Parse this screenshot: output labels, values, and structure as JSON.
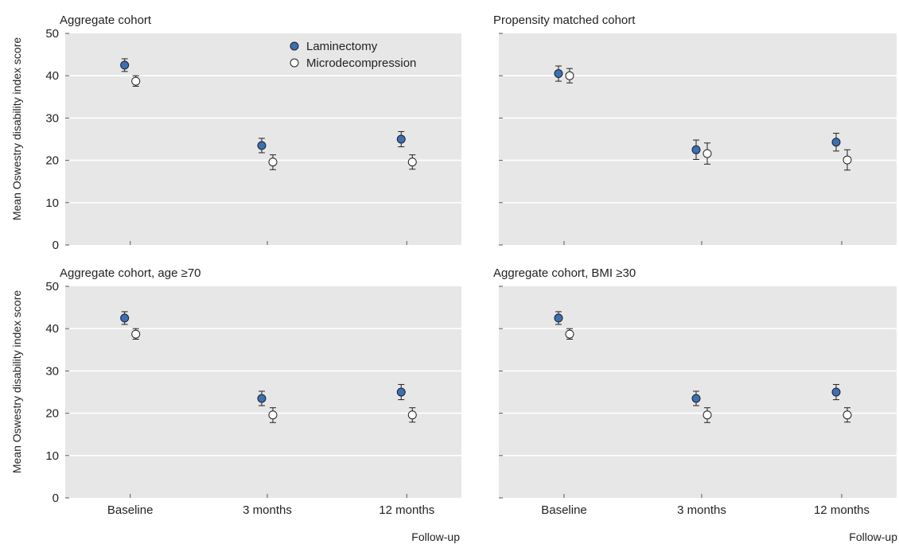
{
  "figure": {
    "ylabel": "Mean Oswestry disability index score",
    "xlabel": "Follow-up"
  },
  "legend": {
    "placement": "top-right of first panel",
    "items": [
      {
        "name": "Laminectomy",
        "marker": "filled-circle",
        "color": "#3a70b6"
      },
      {
        "name": "Microdecompression",
        "marker": "open-circle",
        "color": "#ffffff"
      }
    ]
  },
  "colors": {
    "panel_background": "#e7e7e8",
    "gridline": "#ffffff",
    "laminectomy": "#3a70b6",
    "microdecompression": "#ffffff",
    "marker_edge": "#231f20"
  },
  "chart_data": [
    {
      "type": "scatter",
      "title": "Aggregate cohort",
      "categories": [
        "Baseline",
        "3 months",
        "12 months"
      ],
      "ylim": [
        0,
        50
      ],
      "yticks": [
        0,
        10,
        20,
        30,
        40,
        50
      ],
      "grid": true,
      "series": [
        {
          "name": "Laminectomy",
          "values": [
            42.5,
            23.5,
            25.0
          ],
          "lower": [
            41.0,
            21.8,
            23.2
          ],
          "upper": [
            44.0,
            25.2,
            26.8
          ]
        },
        {
          "name": "Microdecompression",
          "values": [
            38.7,
            19.6,
            19.6
          ],
          "lower": [
            37.5,
            17.8,
            17.9
          ],
          "upper": [
            40.0,
            21.3,
            21.3
          ]
        }
      ]
    },
    {
      "type": "scatter",
      "title": "Propensity matched cohort",
      "categories": [
        "Baseline",
        "3 months",
        "12 months"
      ],
      "ylim": [
        0,
        50
      ],
      "yticks": [
        0,
        10,
        20,
        30,
        40,
        50
      ],
      "grid": true,
      "series": [
        {
          "name": "Laminectomy",
          "values": [
            40.5,
            22.5,
            24.3
          ],
          "lower": [
            38.7,
            20.2,
            22.2
          ],
          "upper": [
            42.3,
            24.8,
            26.4
          ]
        },
        {
          "name": "Microdecompression",
          "values": [
            40.0,
            21.6,
            20.1
          ],
          "lower": [
            38.3,
            19.1,
            17.7
          ],
          "upper": [
            41.7,
            24.1,
            22.5
          ]
        }
      ]
    },
    {
      "type": "scatter",
      "title": "Aggregate cohort, age ≥70",
      "categories": [
        "Baseline",
        "3 months",
        "12 months"
      ],
      "ylim": [
        0,
        50
      ],
      "yticks": [
        0,
        10,
        20,
        30,
        40,
        50
      ],
      "grid": true,
      "series": [
        {
          "name": "Laminectomy",
          "values": [
            42.5,
            23.5,
            25.0
          ],
          "lower": [
            41.0,
            21.8,
            23.2
          ],
          "upper": [
            44.0,
            25.2,
            26.8
          ]
        },
        {
          "name": "Microdecompression",
          "values": [
            38.7,
            19.6,
            19.6
          ],
          "lower": [
            37.5,
            17.8,
            17.9
          ],
          "upper": [
            40.0,
            21.3,
            21.3
          ]
        }
      ]
    },
    {
      "type": "scatter",
      "title": "Aggregate cohort, BMI ≥30",
      "categories": [
        "Baseline",
        "3 months",
        "12 months"
      ],
      "ylim": [
        0,
        50
      ],
      "yticks": [
        0,
        10,
        20,
        30,
        40,
        50
      ],
      "grid": true,
      "series": [
        {
          "name": "Laminectomy",
          "values": [
            42.5,
            23.5,
            25.0
          ],
          "lower": [
            41.0,
            21.8,
            23.2
          ],
          "upper": [
            44.0,
            25.2,
            26.8
          ]
        },
        {
          "name": "Microdecompression",
          "values": [
            38.7,
            19.6,
            19.6
          ],
          "lower": [
            37.5,
            17.8,
            17.9
          ],
          "upper": [
            40.0,
            21.3,
            21.3
          ]
        }
      ]
    }
  ]
}
